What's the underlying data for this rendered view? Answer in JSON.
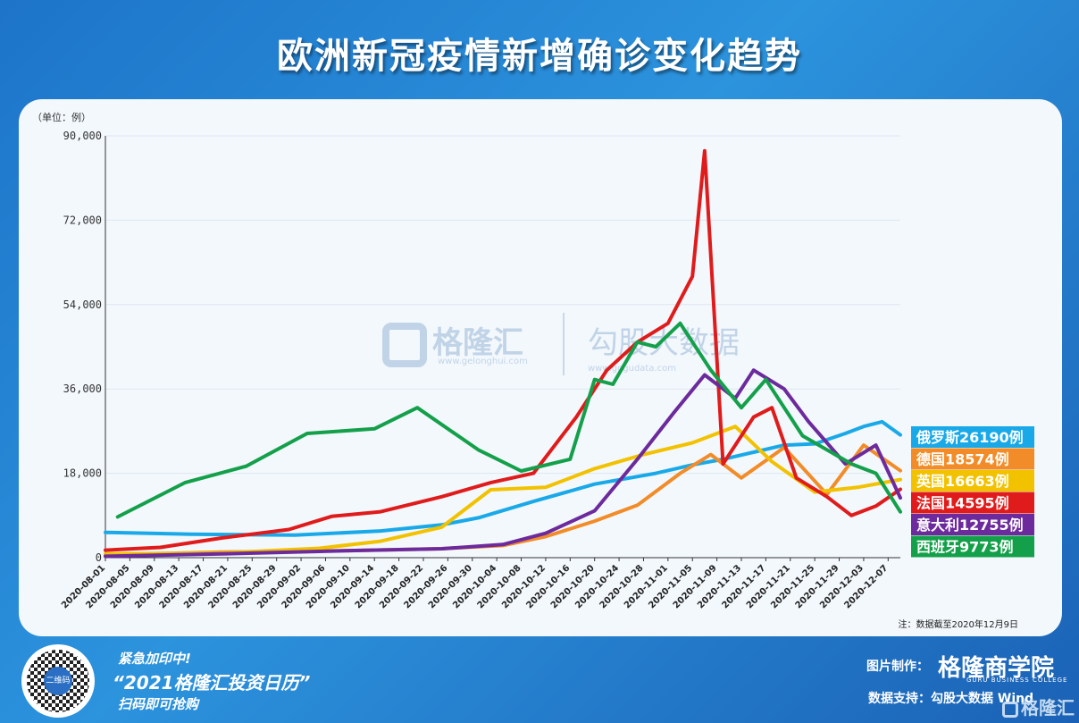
{
  "header": {
    "title": "欧洲新冠疫情新增确诊变化趋势"
  },
  "watermark": {
    "brand": "格隆汇",
    "url": "www.gelonghui.com",
    "brand2": "勾股大数据",
    "url2": "www.gogudata.com"
  },
  "footer": {
    "promo1": "紧急加印中!",
    "promo2": "“2021格隆汇投资日历”",
    "promo3": "扫码即可抢购",
    "credit_label": "图片制作：",
    "credit_brand": "格隆商学院",
    "credit_sub": "GURU BUSINESS COLLEGE",
    "source": "数据支持：勾股大数据 Wind",
    "corner_brand": "格隆汇",
    "qr_label": "二维码"
  },
  "colors": {
    "russia": "#1aa9e8",
    "germany": "#f28c28",
    "uk": "#f2c200",
    "france": "#e01b1b",
    "italy": "#6c2a9c",
    "spain": "#14a04a"
  },
  "chart_data": {
    "type": "line",
    "unit_label": "（单位：例）",
    "note": "注：数据截至2020年12月9日",
    "ylim": [
      0,
      90000
    ],
    "yticks": [
      0,
      18000,
      36000,
      54000,
      72000,
      90000
    ],
    "ytick_labels": [
      "0",
      "18,000",
      "36,000",
      "54,000",
      "72,000",
      "90,000"
    ],
    "xlim": [
      "2020-08-01",
      "2020-12-09"
    ],
    "xtick_labels": [
      "2020-08-01",
      "2020-08-05",
      "2020-08-09",
      "2020-08-13",
      "2020-08-17",
      "2020-08-21",
      "2020-08-25",
      "2020-08-29",
      "2020-09-02",
      "2020-09-06",
      "2020-09-10",
      "2020-09-14",
      "2020-09-18",
      "2020-09-22",
      "2020-09-26",
      "2020-09-30",
      "2020-10-04",
      "2020-10-08",
      "2020-10-12",
      "2020-10-16",
      "2020-10-20",
      "2020-10-24",
      "2020-10-28",
      "2020-11-01",
      "2020-11-05",
      "2020-11-09",
      "2020-11-13",
      "2020-11-17",
      "2020-11-21",
      "2020-11-25",
      "2020-11-29",
      "2020-12-03",
      "2020-12-07"
    ],
    "legend_position": "right",
    "series": [
      {
        "name": "俄罗斯",
        "label": "俄罗斯26190例",
        "color": "#1aa9e8",
        "x": [
          "2020-08-01",
          "2020-08-15",
          "2020-09-01",
          "2020-09-15",
          "2020-09-25",
          "2020-10-01",
          "2020-10-10",
          "2020-10-20",
          "2020-10-30",
          "2020-11-05",
          "2020-11-10",
          "2020-11-15",
          "2020-11-20",
          "2020-11-25",
          "2020-11-30",
          "2020-12-03",
          "2020-12-06",
          "2020-12-09"
        ],
        "values": [
          5400,
          5000,
          4800,
          5700,
          7000,
          8500,
          12000,
          15700,
          18000,
          19800,
          21000,
          22500,
          24000,
          24300,
          26500,
          28000,
          29000,
          26190
        ]
      },
      {
        "name": "德国",
        "label": "德国18574例",
        "color": "#f28c28",
        "x": [
          "2020-08-01",
          "2020-08-20",
          "2020-09-10",
          "2020-09-25",
          "2020-10-05",
          "2020-10-12",
          "2020-10-20",
          "2020-10-27",
          "2020-11-03",
          "2020-11-08",
          "2020-11-13",
          "2020-11-20",
          "2020-11-27",
          "2020-12-03",
          "2020-12-09"
        ],
        "values": [
          600,
          1200,
          1500,
          1900,
          2600,
          4500,
          7800,
          11200,
          18000,
          22000,
          17000,
          23500,
          13500,
          24000,
          18574
        ]
      },
      {
        "name": "英国",
        "label": "英国16663例",
        "color": "#f2c200",
        "x": [
          "2020-08-01",
          "2020-08-20",
          "2020-09-05",
          "2020-09-15",
          "2020-09-25",
          "2020-10-03",
          "2020-10-12",
          "2020-10-20",
          "2020-10-28",
          "2020-11-05",
          "2020-11-12",
          "2020-11-18",
          "2020-11-25",
          "2020-12-02",
          "2020-12-09"
        ],
        "values": [
          800,
          1000,
          2000,
          3500,
          6500,
          14500,
          15000,
          19000,
          22000,
          24500,
          28000,
          20500,
          14000,
          15000,
          16663
        ]
      },
      {
        "name": "法国",
        "label": "法国14595例",
        "color": "#e01b1b",
        "x": [
          "2020-08-01",
          "2020-08-10",
          "2020-08-20",
          "2020-08-31",
          "2020-09-07",
          "2020-09-15",
          "2020-09-25",
          "2020-10-03",
          "2020-10-10",
          "2020-10-17",
          "2020-10-22",
          "2020-10-27",
          "2020-11-01",
          "2020-11-05",
          "2020-11-07",
          "2020-11-10",
          "2020-11-15",
          "2020-11-18",
          "2020-11-22",
          "2020-11-27",
          "2020-12-01",
          "2020-12-05",
          "2020-12-09"
        ],
        "values": [
          1600,
          2200,
          4200,
          6000,
          8800,
          9800,
          13000,
          16000,
          18000,
          30000,
          40000,
          46000,
          50000,
          60000,
          86800,
          20000,
          30000,
          32000,
          17000,
          13000,
          9000,
          11000,
          14595
        ]
      },
      {
        "name": "意大利",
        "label": "意大利12755例",
        "color": "#6c2a9c",
        "x": [
          "2020-08-01",
          "2020-08-20",
          "2020-09-10",
          "2020-09-25",
          "2020-10-05",
          "2020-10-12",
          "2020-10-20",
          "2020-10-27",
          "2020-11-02",
          "2020-11-07",
          "2020-11-12",
          "2020-11-15",
          "2020-11-20",
          "2020-11-24",
          "2020-11-30",
          "2020-12-05",
          "2020-12-09"
        ],
        "values": [
          300,
          800,
          1500,
          1900,
          2800,
          5200,
          10000,
          21000,
          31000,
          39000,
          34000,
          40000,
          36000,
          29000,
          20000,
          24000,
          12755
        ]
      },
      {
        "name": "西班牙",
        "label": "西班牙9773例",
        "color": "#14a04a",
        "x": [
          "2020-08-03",
          "2020-08-14",
          "2020-08-24",
          "2020-09-03",
          "2020-09-14",
          "2020-09-21",
          "2020-10-01",
          "2020-10-08",
          "2020-10-16",
          "2020-10-20",
          "2020-10-23",
          "2020-10-27",
          "2020-10-30",
          "2020-11-03",
          "2020-11-08",
          "2020-11-13",
          "2020-11-17",
          "2020-11-23",
          "2020-12-01",
          "2020-12-05",
          "2020-12-09"
        ],
        "values": [
          8700,
          16000,
          19500,
          26500,
          27500,
          32000,
          23000,
          18500,
          21000,
          38000,
          37000,
          46000,
          45000,
          50000,
          40000,
          32000,
          38000,
          26000,
          20000,
          18000,
          9773
        ]
      }
    ]
  }
}
